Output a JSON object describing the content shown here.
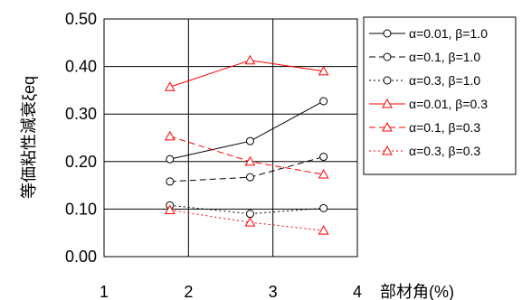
{
  "chart_data": {
    "type": "line",
    "xlabel": "部材角(%)",
    "ylabel": "等価粘性減衰ξeq",
    "xlim": [
      1,
      4
    ],
    "ylim": [
      0,
      0.5
    ],
    "x_ticks": [
      "1",
      "2",
      "3",
      "4"
    ],
    "y_ticks": [
      "0.00",
      "0.10",
      "0.20",
      "0.30",
      "0.40",
      "0.50"
    ],
    "grid": true,
    "legend_position": "right",
    "series": [
      {
        "name": "α=0.01, β=1.0",
        "x": [
          1.78,
          2.73,
          3.6
        ],
        "y": [
          0.205,
          0.243,
          0.327
        ],
        "color": "#000000",
        "dash": "solid",
        "marker": "circle"
      },
      {
        "name": "α=0.1, β=1.0",
        "x": [
          1.78,
          2.73,
          3.6
        ],
        "y": [
          0.158,
          0.167,
          0.21
        ],
        "color": "#000000",
        "dash": "dashed",
        "marker": "circle"
      },
      {
        "name": "α=0.3, β=1.0",
        "x": [
          1.78,
          2.73,
          3.6
        ],
        "y": [
          0.108,
          0.09,
          0.102
        ],
        "color": "#000000",
        "dash": "dotted",
        "marker": "circle"
      },
      {
        "name": "α=0.01, β=0.3",
        "x": [
          1.78,
          2.73,
          3.6
        ],
        "y": [
          0.357,
          0.413,
          0.39
        ],
        "color": "#ff0000",
        "dash": "solid",
        "marker": "triangle"
      },
      {
        "name": "α=0.1, β=0.3",
        "x": [
          1.78,
          2.73,
          3.6
        ],
        "y": [
          0.253,
          0.2,
          0.173
        ],
        "color": "#ff0000",
        "dash": "dashed",
        "marker": "triangle"
      },
      {
        "name": "α=0.3, β=0.3",
        "x": [
          1.78,
          2.73,
          3.6
        ],
        "y": [
          0.098,
          0.072,
          0.055
        ],
        "color": "#ff0000",
        "dash": "dotted",
        "marker": "triangle"
      }
    ]
  }
}
